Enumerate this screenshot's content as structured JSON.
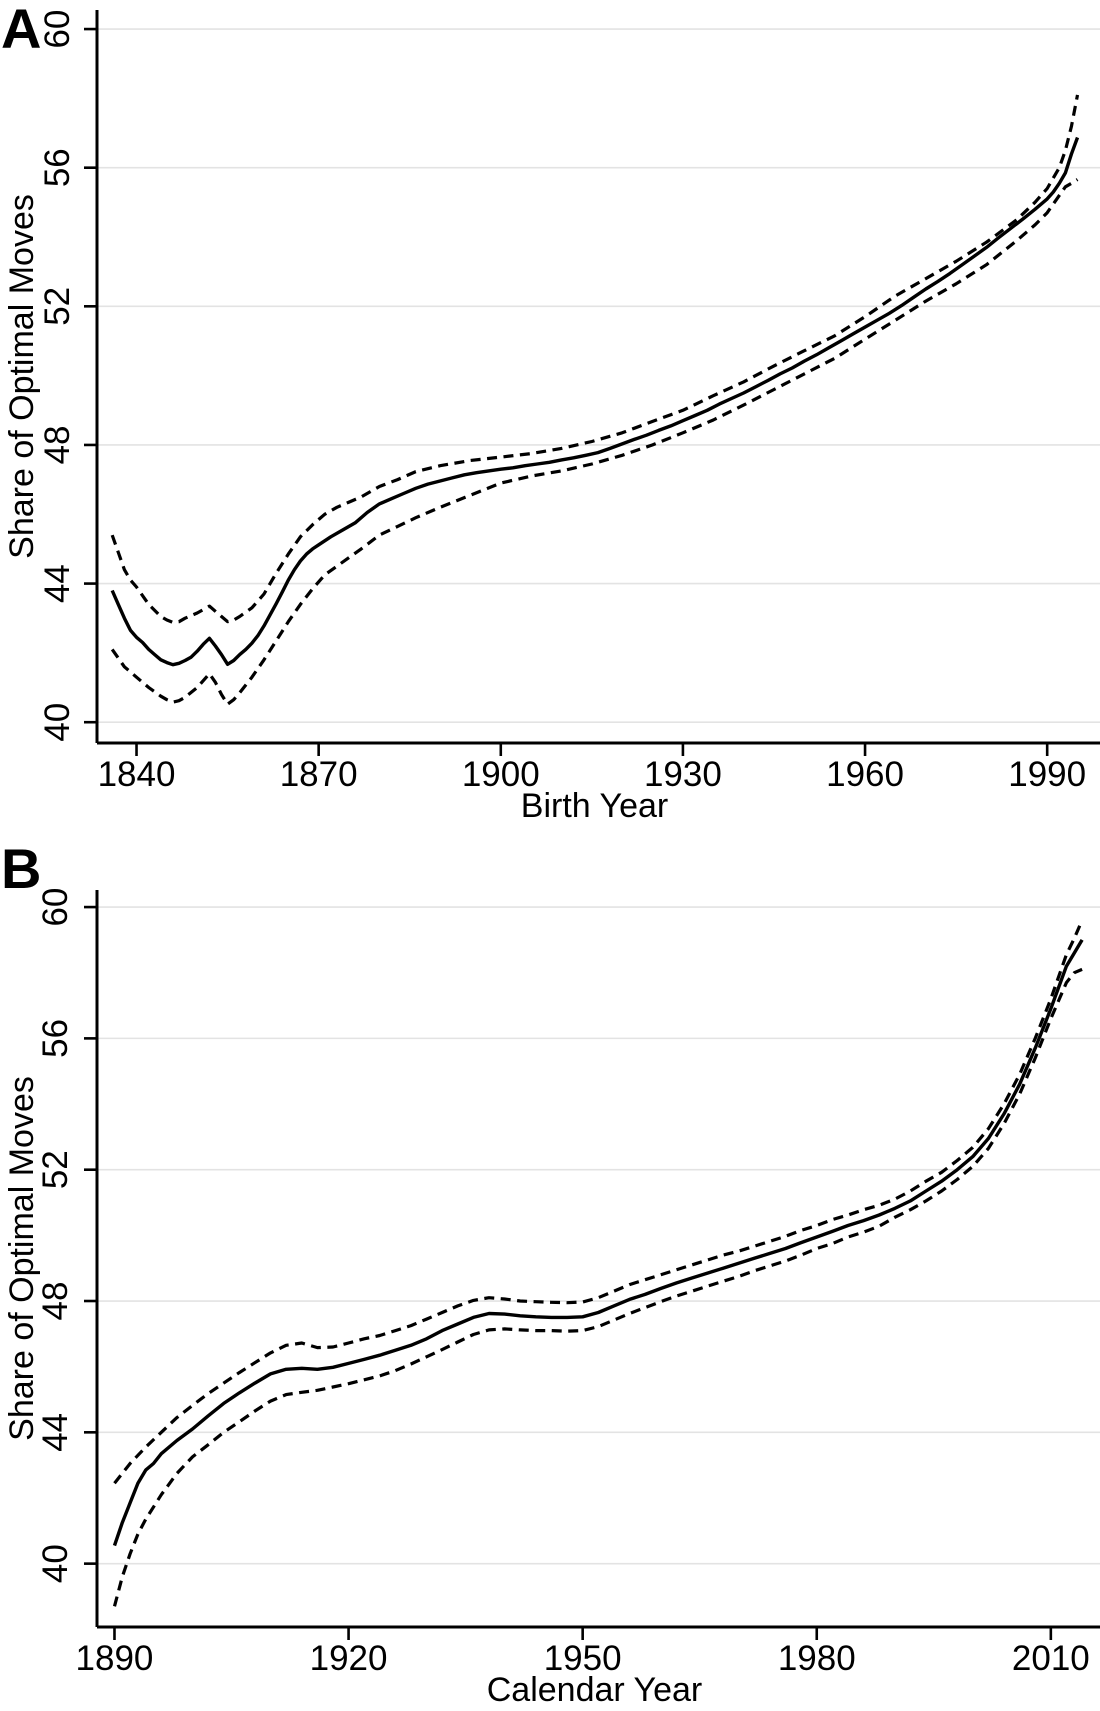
{
  "figure": {
    "panels": [
      {
        "letter": "A",
        "xlabel": "Birth Year",
        "ylabel": "Share of Optimal Moves"
      },
      {
        "letter": "B",
        "xlabel": "Calendar Year",
        "ylabel": "Share of Optimal Moves"
      }
    ]
  },
  "colors": {
    "line": "#000000",
    "grid": "#e3e3e3",
    "text": "#000000",
    "background": "#ffffff"
  },
  "chart_data": [
    {
      "type": "line",
      "panel": "A",
      "xlabel": "Birth Year",
      "ylabel": "Share of Optimal Moves",
      "xlim": [
        1833.49,
        1998.7
      ],
      "ylim": [
        39.4,
        60.55
      ],
      "xticks": [
        1840,
        1870,
        1900,
        1930,
        1960,
        1990
      ],
      "yticks": [
        40,
        44,
        48,
        52,
        56,
        60
      ],
      "grid": "horizontal",
      "legend": "none",
      "series": [
        {
          "name": "point-estimate",
          "style": "solid",
          "x": [
            1836,
            1837,
            1838,
            1839,
            1840,
            1841,
            1842,
            1843,
            1844,
            1845,
            1846,
            1847,
            1848,
            1849,
            1850,
            1851,
            1852,
            1853,
            1854,
            1855,
            1856,
            1857,
            1858,
            1859,
            1860,
            1861,
            1862,
            1863,
            1864,
            1865,
            1866,
            1867,
            1868,
            1869,
            1870,
            1872,
            1874,
            1876,
            1878,
            1880,
            1882,
            1884,
            1886,
            1888,
            1890,
            1892,
            1894,
            1896,
            1898,
            1900,
            1902,
            1904,
            1906,
            1908,
            1910,
            1912,
            1914,
            1916,
            1918,
            1920,
            1922,
            1924,
            1926,
            1928,
            1930,
            1932,
            1934,
            1936,
            1938,
            1940,
            1942,
            1944,
            1946,
            1948,
            1950,
            1952,
            1954,
            1956,
            1958,
            1960,
            1962,
            1964,
            1966,
            1968,
            1970,
            1972,
            1974,
            1976,
            1978,
            1980,
            1982,
            1984,
            1986,
            1988,
            1990,
            1991,
            1992,
            1993,
            1994,
            1995
          ],
          "y": [
            43.8,
            43.4,
            43.0,
            42.65,
            42.45,
            42.3,
            42.1,
            41.95,
            41.8,
            41.72,
            41.66,
            41.7,
            41.78,
            41.88,
            42.05,
            42.25,
            42.42,
            42.2,
            41.95,
            41.67,
            41.78,
            41.95,
            42.1,
            42.28,
            42.5,
            42.78,
            43.1,
            43.42,
            43.75,
            44.1,
            44.4,
            44.65,
            44.85,
            45.0,
            45.12,
            45.35,
            45.55,
            45.75,
            46.05,
            46.3,
            46.45,
            46.6,
            46.75,
            46.87,
            46.96,
            47.05,
            47.14,
            47.2,
            47.25,
            47.3,
            47.34,
            47.4,
            47.45,
            47.5,
            47.57,
            47.63,
            47.7,
            47.78,
            47.9,
            48.03,
            48.16,
            48.28,
            48.42,
            48.55,
            48.7,
            48.85,
            49.0,
            49.18,
            49.34,
            49.5,
            49.68,
            49.86,
            50.05,
            50.22,
            50.42,
            50.6,
            50.8,
            51.0,
            51.2,
            51.4,
            51.6,
            51.8,
            52.02,
            52.26,
            52.5,
            52.72,
            52.95,
            53.2,
            53.45,
            53.7,
            53.98,
            54.25,
            54.52,
            54.8,
            55.1,
            55.3,
            55.55,
            55.85,
            56.4,
            56.87
          ]
        },
        {
          "name": "ci-upper",
          "style": "dashed",
          "x": [
            1836,
            1837,
            1838,
            1839,
            1840,
            1842,
            1844,
            1845,
            1846,
            1847,
            1848,
            1850,
            1851,
            1852,
            1853,
            1854,
            1855,
            1856,
            1857,
            1859,
            1861,
            1863,
            1865,
            1867,
            1869,
            1871,
            1873,
            1875,
            1877,
            1880,
            1883,
            1886,
            1890,
            1895,
            1900,
            1905,
            1910,
            1915,
            1920,
            1925,
            1930,
            1935,
            1940,
            1945,
            1950,
            1955,
            1960,
            1965,
            1970,
            1975,
            1980,
            1985,
            1988,
            1990,
            1992,
            1993,
            1994,
            1995
          ],
          "y": [
            45.4,
            44.9,
            44.4,
            44.1,
            43.9,
            43.4,
            43.05,
            42.95,
            42.88,
            42.9,
            43.0,
            43.15,
            43.25,
            43.35,
            43.2,
            43.05,
            42.9,
            42.95,
            43.05,
            43.3,
            43.7,
            44.3,
            44.85,
            45.35,
            45.7,
            46.0,
            46.2,
            46.35,
            46.5,
            46.8,
            47.0,
            47.23,
            47.4,
            47.55,
            47.65,
            47.75,
            47.9,
            48.1,
            48.35,
            48.68,
            49.0,
            49.42,
            49.82,
            50.28,
            50.72,
            51.15,
            51.7,
            52.3,
            52.8,
            53.3,
            53.85,
            54.5,
            55.0,
            55.4,
            56.0,
            56.5,
            57.2,
            58.1
          ]
        },
        {
          "name": "ci-lower",
          "style": "dashed",
          "x": [
            1836,
            1837,
            1838,
            1839,
            1840,
            1842,
            1844,
            1845,
            1846,
            1847,
            1848,
            1850,
            1852,
            1853,
            1854,
            1855,
            1856,
            1857,
            1859,
            1861,
            1863,
            1865,
            1867,
            1869,
            1871,
            1873,
            1875,
            1877,
            1880,
            1883,
            1886,
            1890,
            1895,
            1900,
            1905,
            1910,
            1915,
            1920,
            1925,
            1930,
            1935,
            1940,
            1945,
            1950,
            1955,
            1960,
            1965,
            1970,
            1975,
            1980,
            1985,
            1988,
            1990,
            1992,
            1993,
            1994,
            1995
          ],
          "y": [
            42.1,
            41.85,
            41.6,
            41.45,
            41.3,
            41.0,
            40.75,
            40.65,
            40.58,
            40.62,
            40.72,
            41.0,
            41.4,
            41.15,
            40.8,
            40.52,
            40.65,
            40.85,
            41.3,
            41.8,
            42.35,
            42.9,
            43.4,
            43.85,
            44.25,
            44.5,
            44.75,
            45.0,
            45.4,
            45.65,
            45.9,
            46.2,
            46.55,
            46.9,
            47.1,
            47.25,
            47.45,
            47.7,
            48.0,
            48.35,
            48.72,
            49.15,
            49.6,
            50.05,
            50.5,
            51.05,
            51.6,
            52.15,
            52.65,
            53.2,
            53.9,
            54.35,
            54.7,
            55.2,
            55.45,
            55.55,
            55.66
          ]
        }
      ]
    },
    {
      "type": "line",
      "panel": "B",
      "xlabel": "Calendar Year",
      "ylabel": "Share of Optimal Moves",
      "xlim": [
        1887.76,
        2016.3
      ],
      "ylim": [
        38.07,
        60.52
      ],
      "xticks": [
        1890,
        1920,
        1950,
        1980,
        2010
      ],
      "yticks": [
        40,
        44,
        48,
        52,
        56,
        60
      ],
      "grid": "horizontal",
      "legend": "none",
      "series": [
        {
          "name": "point-estimate",
          "style": "solid",
          "x": [
            1890,
            1891,
            1892,
            1893,
            1894,
            1895,
            1896,
            1898,
            1900,
            1902,
            1904,
            1906,
            1908,
            1910,
            1912,
            1914,
            1916,
            1918,
            1920,
            1922,
            1924,
            1926,
            1928,
            1930,
            1932,
            1934,
            1936,
            1938,
            1940,
            1942,
            1944,
            1946,
            1948,
            1950,
            1952,
            1954,
            1956,
            1958,
            1960,
            1962,
            1964,
            1966,
            1968,
            1970,
            1972,
            1974,
            1976,
            1978,
            1980,
            1982,
            1984,
            1986,
            1988,
            1990,
            1992,
            1994,
            1996,
            1998,
            2000,
            2002,
            2004,
            2006,
            2008,
            2010,
            2012,
            2013,
            2014
          ],
          "y": [
            40.55,
            41.25,
            41.85,
            42.45,
            42.85,
            43.05,
            43.35,
            43.75,
            44.1,
            44.5,
            44.88,
            45.2,
            45.5,
            45.78,
            45.92,
            45.95,
            45.92,
            45.98,
            46.1,
            46.22,
            46.35,
            46.5,
            46.65,
            46.85,
            47.1,
            47.3,
            47.5,
            47.62,
            47.6,
            47.55,
            47.52,
            47.5,
            47.5,
            47.52,
            47.65,
            47.85,
            48.05,
            48.2,
            48.38,
            48.55,
            48.7,
            48.85,
            49.0,
            49.15,
            49.3,
            49.45,
            49.6,
            49.78,
            49.95,
            50.12,
            50.3,
            50.45,
            50.62,
            50.82,
            51.05,
            51.35,
            51.65,
            52.0,
            52.4,
            52.95,
            53.7,
            54.6,
            55.7,
            56.9,
            58.2,
            58.6,
            59.0
          ]
        },
        {
          "name": "ci-upper",
          "style": "dashed",
          "x": [
            1890,
            1892,
            1894,
            1896,
            1898,
            1900,
            1902,
            1904,
            1906,
            1908,
            1910,
            1912,
            1914,
            1916,
            1918,
            1920,
            1922,
            1924,
            1926,
            1928,
            1930,
            1932,
            1934,
            1936,
            1938,
            1940,
            1942,
            1944,
            1946,
            1948,
            1950,
            1952,
            1954,
            1956,
            1958,
            1960,
            1962,
            1964,
            1966,
            1968,
            1970,
            1972,
            1974,
            1976,
            1978,
            1980,
            1982,
            1984,
            1986,
            1988,
            1990,
            1992,
            1994,
            1996,
            1998,
            2000,
            2002,
            2004,
            2006,
            2008,
            2010,
            2012,
            2013,
            2014
          ],
          "y": [
            42.45,
            43.05,
            43.55,
            44.0,
            44.45,
            44.82,
            45.18,
            45.5,
            45.82,
            46.12,
            46.42,
            46.65,
            46.72,
            46.58,
            46.6,
            46.72,
            46.85,
            46.95,
            47.1,
            47.25,
            47.45,
            47.65,
            47.85,
            48.02,
            48.1,
            48.06,
            48.0,
            47.98,
            47.96,
            47.95,
            47.97,
            48.1,
            48.3,
            48.5,
            48.65,
            48.8,
            48.95,
            49.1,
            49.25,
            49.4,
            49.52,
            49.67,
            49.82,
            49.97,
            50.15,
            50.3,
            50.48,
            50.62,
            50.78,
            50.92,
            51.1,
            51.35,
            51.65,
            51.92,
            52.28,
            52.68,
            53.25,
            54.0,
            54.9,
            56.0,
            57.2,
            58.55,
            59.05,
            59.6
          ]
        },
        {
          "name": "ci-lower",
          "style": "dashed",
          "x": [
            1890,
            1891,
            1892,
            1893,
            1894,
            1896,
            1898,
            1900,
            1902,
            1904,
            1906,
            1908,
            1910,
            1912,
            1914,
            1916,
            1918,
            1920,
            1922,
            1924,
            1926,
            1928,
            1930,
            1932,
            1934,
            1936,
            1938,
            1940,
            1942,
            1944,
            1946,
            1948,
            1950,
            1952,
            1954,
            1956,
            1958,
            1960,
            1962,
            1964,
            1966,
            1968,
            1970,
            1972,
            1974,
            1976,
            1978,
            1980,
            1982,
            1984,
            1986,
            1988,
            1990,
            1992,
            1994,
            1996,
            1998,
            2000,
            2002,
            2004,
            2006,
            2008,
            2010,
            2012,
            2013,
            2014
          ],
          "y": [
            38.7,
            39.6,
            40.3,
            40.9,
            41.35,
            42.1,
            42.75,
            43.25,
            43.62,
            44.0,
            44.32,
            44.65,
            44.95,
            45.15,
            45.22,
            45.28,
            45.38,
            45.48,
            45.6,
            45.72,
            45.88,
            46.08,
            46.3,
            46.52,
            46.75,
            46.98,
            47.12,
            47.15,
            47.12,
            47.1,
            47.1,
            47.08,
            47.1,
            47.22,
            47.42,
            47.62,
            47.8,
            47.98,
            48.15,
            48.3,
            48.45,
            48.6,
            48.75,
            48.92,
            49.07,
            49.22,
            49.4,
            49.6,
            49.75,
            49.95,
            50.1,
            50.28,
            50.55,
            50.78,
            51.05,
            51.35,
            51.7,
            52.1,
            52.65,
            53.4,
            54.3,
            55.4,
            56.6,
            57.7,
            58.0,
            58.1
          ]
        }
      ]
    }
  ]
}
